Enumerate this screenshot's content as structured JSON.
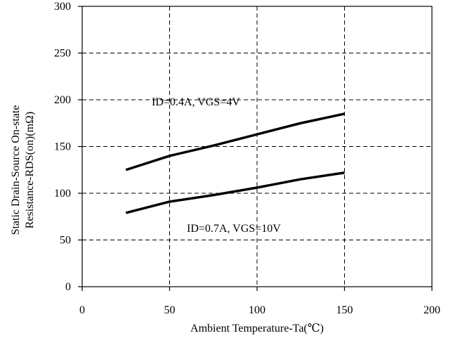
{
  "chart_data": {
    "type": "line",
    "xlabel": "Ambient Temperature-Ta(℃)",
    "ylabel_lines": [
      "Static Drain-Source On-state",
      "Resistance-RDS(on)(mΩ)"
    ],
    "xlim": [
      0,
      200
    ],
    "ylim": [
      0,
      300
    ],
    "x_ticks": [
      0,
      50,
      100,
      150,
      200
    ],
    "y_ticks": [
      0,
      50,
      100,
      150,
      200,
      250,
      300
    ],
    "x_tick_labels": [
      "0",
      "50",
      "100",
      "150",
      "200"
    ],
    "y_tick_labels": [
      "0",
      "50",
      "100",
      "150",
      "200",
      "250",
      "300"
    ],
    "grid": true,
    "series": [
      {
        "name": "ID=0.4A, VGS=4V",
        "x": [
          25,
          50,
          75,
          100,
          125,
          150
        ],
        "y": [
          125,
          140,
          151,
          163,
          175,
          185
        ]
      },
      {
        "name": "ID=0.7A, VGS=10V",
        "x": [
          25,
          50,
          75,
          100,
          125,
          150
        ],
        "y": [
          79,
          91,
          98,
          106,
          115,
          122
        ]
      }
    ],
    "annotations": [
      {
        "text": "ID=0.4A, VGS=4V"
      },
      {
        "text": "ID=0.7A, VGS=10V"
      }
    ]
  }
}
